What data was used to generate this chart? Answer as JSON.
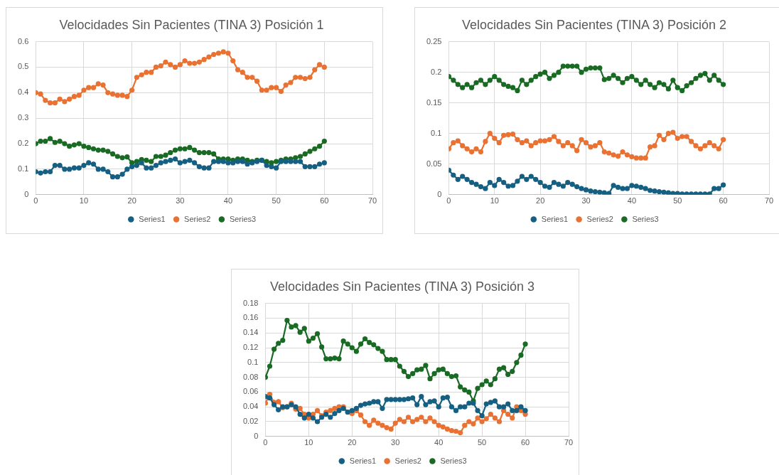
{
  "chart_data": [
    {
      "type": "line",
      "title": "Velocidades Sin Pacientes (TINA 3) Posición 1",
      "x": [
        0,
        1,
        2,
        3,
        4,
        5,
        6,
        7,
        8,
        9,
        10,
        11,
        12,
        13,
        14,
        15,
        16,
        17,
        18,
        19,
        20,
        21,
        22,
        23,
        24,
        25,
        26,
        27,
        28,
        29,
        30,
        31,
        32,
        33,
        34,
        35,
        36,
        37,
        38,
        39,
        40,
        41,
        42,
        43,
        44,
        45,
        46,
        47,
        48,
        49,
        50,
        51,
        52,
        53,
        54,
        55,
        56,
        57,
        58,
        59,
        60
      ],
      "xlim": [
        0,
        70
      ],
      "xticks": [
        0,
        10,
        20,
        30,
        40,
        50,
        60,
        70
      ],
      "ylim": [
        0,
        0.6
      ],
      "yticks": [
        0,
        0.1,
        0.2,
        0.3,
        0.4,
        0.5,
        0.6
      ],
      "grid": true,
      "legend": "bottom",
      "marker": "circle",
      "series": [
        {
          "name": "Series1",
          "color": "#156082",
          "values": [
            0.09,
            0.085,
            0.09,
            0.09,
            0.115,
            0.115,
            0.1,
            0.1,
            0.105,
            0.105,
            0.115,
            0.125,
            0.12,
            0.1,
            0.1,
            0.09,
            0.07,
            0.07,
            0.08,
            0.1,
            0.11,
            0.115,
            0.125,
            0.105,
            0.105,
            0.115,
            0.125,
            0.13,
            0.135,
            0.14,
            0.125,
            0.13,
            0.135,
            0.125,
            0.11,
            0.105,
            0.105,
            0.13,
            0.13,
            0.13,
            0.125,
            0.125,
            0.13,
            0.13,
            0.12,
            0.125,
            0.13,
            0.135,
            0.115,
            0.11,
            0.105,
            0.13,
            0.13,
            0.13,
            0.13,
            0.13,
            0.11,
            0.11,
            0.11,
            0.12,
            0.125
          ]
        },
        {
          "name": "Series2",
          "color": "#e97132",
          "values": [
            0.4,
            0.395,
            0.37,
            0.36,
            0.36,
            0.375,
            0.365,
            0.375,
            0.385,
            0.39,
            0.41,
            0.42,
            0.42,
            0.435,
            0.43,
            0.4,
            0.395,
            0.39,
            0.39,
            0.385,
            0.41,
            0.46,
            0.47,
            0.48,
            0.48,
            0.5,
            0.505,
            0.52,
            0.51,
            0.5,
            0.51,
            0.525,
            0.515,
            0.515,
            0.52,
            0.53,
            0.54,
            0.55,
            0.555,
            0.56,
            0.555,
            0.525,
            0.49,
            0.48,
            0.46,
            0.46,
            0.445,
            0.41,
            0.41,
            0.42,
            0.42,
            0.405,
            0.43,
            0.44,
            0.46,
            0.46,
            0.455,
            0.46,
            0.49,
            0.51,
            0.5
          ]
        },
        {
          "name": "Series3",
          "color": "#196b24",
          "values": [
            0.2,
            0.21,
            0.21,
            0.22,
            0.205,
            0.21,
            0.2,
            0.19,
            0.195,
            0.2,
            0.19,
            0.185,
            0.18,
            0.175,
            0.175,
            0.17,
            0.16,
            0.15,
            0.145,
            0.148,
            0.125,
            0.13,
            0.138,
            0.135,
            0.13,
            0.15,
            0.15,
            0.155,
            0.165,
            0.175,
            0.18,
            0.18,
            0.185,
            0.175,
            0.165,
            0.165,
            0.165,
            0.16,
            0.14,
            0.14,
            0.14,
            0.135,
            0.14,
            0.14,
            0.135,
            0.13,
            0.135,
            0.135,
            0.13,
            0.125,
            0.13,
            0.135,
            0.14,
            0.14,
            0.145,
            0.15,
            0.16,
            0.17,
            0.18,
            0.19,
            0.21
          ]
        }
      ]
    },
    {
      "type": "line",
      "title": "Velocidades Sin Pacientes (TINA 3) Posición 2",
      "x": [
        0,
        1,
        2,
        3,
        4,
        5,
        6,
        7,
        8,
        9,
        10,
        11,
        12,
        13,
        14,
        15,
        16,
        17,
        18,
        19,
        20,
        21,
        22,
        23,
        24,
        25,
        26,
        27,
        28,
        29,
        30,
        31,
        32,
        33,
        34,
        35,
        36,
        37,
        38,
        39,
        40,
        41,
        42,
        43,
        44,
        45,
        46,
        47,
        48,
        49,
        50,
        51,
        52,
        53,
        54,
        55,
        56,
        57,
        58,
        59,
        60
      ],
      "xlim": [
        0,
        70
      ],
      "xticks": [
        0,
        10,
        20,
        30,
        40,
        50,
        60,
        70
      ],
      "ylim": [
        0,
        0.25
      ],
      "yticks": [
        0,
        0.05,
        0.1,
        0.15,
        0.2,
        0.25
      ],
      "grid": true,
      "legend": "bottom",
      "marker": "circle",
      "series": [
        {
          "name": "Series1",
          "color": "#156082",
          "values": [
            0.04,
            0.032,
            0.025,
            0.03,
            0.025,
            0.02,
            0.017,
            0.013,
            0.01,
            0.02,
            0.015,
            0.025,
            0.02,
            0.014,
            0.015,
            0.022,
            0.03,
            0.025,
            0.03,
            0.025,
            0.02,
            0.014,
            0.012,
            0.02,
            0.017,
            0.014,
            0.02,
            0.017,
            0.013,
            0.01,
            0.008,
            0.006,
            0.005,
            0.004,
            0.003,
            0.002,
            0.015,
            0.012,
            0.01,
            0.01,
            0.015,
            0.014,
            0.012,
            0.01,
            0.007,
            0.006,
            0.005,
            0.004,
            0.003,
            0.002,
            0.002,
            0.001,
            0.001,
            0.001,
            0.001,
            0.001,
            0.001,
            0.001,
            0.01,
            0.01,
            0.016
          ]
        },
        {
          "name": "Series2",
          "color": "#e97132",
          "values": [
            0.075,
            0.085,
            0.088,
            0.08,
            0.075,
            0.07,
            0.075,
            0.07,
            0.087,
            0.1,
            0.092,
            0.085,
            0.097,
            0.098,
            0.099,
            0.09,
            0.085,
            0.088,
            0.08,
            0.085,
            0.088,
            0.088,
            0.09,
            0.095,
            0.087,
            0.08,
            0.085,
            0.08,
            0.072,
            0.09,
            0.085,
            0.078,
            0.08,
            0.085,
            0.07,
            0.068,
            0.065,
            0.063,
            0.07,
            0.065,
            0.062,
            0.06,
            0.06,
            0.06,
            0.078,
            0.08,
            0.097,
            0.09,
            0.1,
            0.102,
            0.092,
            0.095,
            0.095,
            0.087,
            0.08,
            0.075,
            0.08,
            0.085,
            0.08,
            0.075,
            0.09
          ]
        },
        {
          "name": "Series3",
          "color": "#196b24",
          "values": [
            0.193,
            0.187,
            0.18,
            0.175,
            0.18,
            0.175,
            0.183,
            0.187,
            0.18,
            0.187,
            0.193,
            0.187,
            0.18,
            0.177,
            0.175,
            0.17,
            0.187,
            0.18,
            0.187,
            0.193,
            0.197,
            0.2,
            0.19,
            0.195,
            0.2,
            0.21,
            0.21,
            0.21,
            0.21,
            0.2,
            0.205,
            0.207,
            0.207,
            0.207,
            0.188,
            0.19,
            0.195,
            0.19,
            0.183,
            0.19,
            0.193,
            0.187,
            0.18,
            0.187,
            0.18,
            0.175,
            0.183,
            0.18,
            0.173,
            0.187,
            0.175,
            0.17,
            0.178,
            0.183,
            0.19,
            0.195,
            0.198,
            0.187,
            0.195,
            0.187,
            0.18
          ]
        }
      ]
    },
    {
      "type": "line",
      "title": "Velocidades Sin Pacientes (TINA 3) Posición 3",
      "x": [
        0,
        1,
        2,
        3,
        4,
        5,
        6,
        7,
        8,
        9,
        10,
        11,
        12,
        13,
        14,
        15,
        16,
        17,
        18,
        19,
        20,
        21,
        22,
        23,
        24,
        25,
        26,
        27,
        28,
        29,
        30,
        31,
        32,
        33,
        34,
        35,
        36,
        37,
        38,
        39,
        40,
        41,
        42,
        43,
        44,
        45,
        46,
        47,
        48,
        49,
        50,
        51,
        52,
        53,
        54,
        55,
        56,
        57,
        58,
        59,
        60
      ],
      "xlim": [
        0,
        70
      ],
      "xticks": [
        0,
        10,
        20,
        30,
        40,
        50,
        60,
        70
      ],
      "ylim": [
        0,
        0.18
      ],
      "yticks": [
        0,
        0.02,
        0.04,
        0.06,
        0.08,
        0.1,
        0.12,
        0.14,
        0.16,
        0.18
      ],
      "grid": true,
      "legend": "bottom",
      "marker": "circle",
      "series": [
        {
          "name": "Series1",
          "color": "#156082",
          "values": [
            0.054,
            0.052,
            0.043,
            0.036,
            0.04,
            0.04,
            0.043,
            0.04,
            0.03,
            0.025,
            0.03,
            0.025,
            0.02,
            0.026,
            0.03,
            0.026,
            0.031,
            0.035,
            0.038,
            0.033,
            0.035,
            0.038,
            0.042,
            0.044,
            0.045,
            0.047,
            0.047,
            0.038,
            0.05,
            0.05,
            0.05,
            0.05,
            0.05,
            0.051,
            0.052,
            0.043,
            0.054,
            0.043,
            0.047,
            0.048,
            0.04,
            0.052,
            0.053,
            0.04,
            0.035,
            0.04,
            0.04,
            0.045,
            0.045,
            0.035,
            0.028,
            0.044,
            0.046,
            0.048,
            0.04,
            0.04,
            0.044,
            0.035,
            0.035,
            0.04,
            0.035
          ]
        },
        {
          "name": "Series2",
          "color": "#e97132",
          "values": [
            0.045,
            0.057,
            0.046,
            0.047,
            0.039,
            0.04,
            0.045,
            0.037,
            0.038,
            0.03,
            0.025,
            0.03,
            0.035,
            0.028,
            0.033,
            0.035,
            0.038,
            0.04,
            0.04,
            0.033,
            0.031,
            0.035,
            0.029,
            0.02,
            0.015,
            0.022,
            0.018,
            0.015,
            0.012,
            0.01,
            0.018,
            0.023,
            0.02,
            0.026,
            0.02,
            0.023,
            0.026,
            0.02,
            0.025,
            0.02,
            0.015,
            0.013,
            0.01,
            0.008,
            0.007,
            0.005,
            0.015,
            0.02,
            0.017,
            0.025,
            0.02,
            0.024,
            0.03,
            0.025,
            0.02,
            0.035,
            0.03,
            0.025,
            0.04,
            0.035,
            0.03
          ]
        },
        {
          "name": "Series3",
          "color": "#196b24",
          "values": [
            0.08,
            0.095,
            0.118,
            0.126,
            0.13,
            0.157,
            0.148,
            0.15,
            0.141,
            0.146,
            0.129,
            0.133,
            0.139,
            0.121,
            0.105,
            0.105,
            0.106,
            0.105,
            0.129,
            0.125,
            0.12,
            0.115,
            0.125,
            0.132,
            0.127,
            0.124,
            0.119,
            0.115,
            0.104,
            0.104,
            0.104,
            0.095,
            0.088,
            0.081,
            0.085,
            0.09,
            0.091,
            0.096,
            0.078,
            0.085,
            0.09,
            0.091,
            0.085,
            0.081,
            0.082,
            0.067,
            0.063,
            0.06,
            0.048,
            0.065,
            0.07,
            0.075,
            0.07,
            0.078,
            0.091,
            0.093,
            0.084,
            0.088,
            0.1,
            0.11,
            0.125
          ]
        }
      ]
    }
  ]
}
